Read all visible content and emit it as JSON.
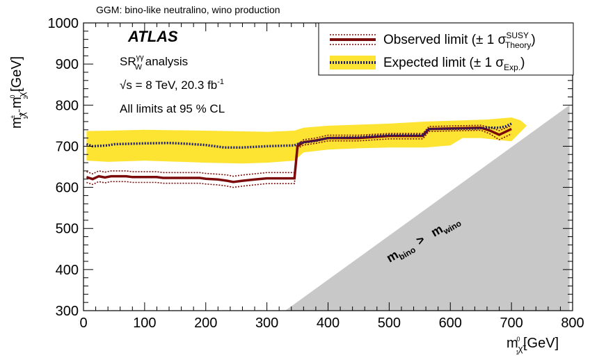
{
  "chart_data": {
    "type": "line",
    "header": "GGM: bino-like neutralino, wino production",
    "xlabel": "m",
    "xlabel_sub": "χ̃",
    "xlabel_sub_idx": "1",
    "xlabel_sup": "0",
    "xlabel_unit": "[GeV]",
    "ylabel_a": "m",
    "ylabel_a_sup": "±",
    "ylabel_a_sub": "χ̃",
    "ylabel_a_sub_idx": "1",
    "ylabel_sep": ", m",
    "ylabel_b_sup": "0",
    "ylabel_b_sub": "χ̃",
    "ylabel_b_sub_idx": "2",
    "ylabel_unit": "[GeV]",
    "xlim": [
      0,
      800
    ],
    "ylim": [
      300,
      1000
    ],
    "xticks": [
      "0",
      "100",
      "200",
      "300",
      "400",
      "500",
      "600",
      "700",
      "800"
    ],
    "yticks": [
      "300",
      "400",
      "500",
      "600",
      "700",
      "800",
      "900",
      "1000"
    ],
    "annotations": {
      "atlas": "ATLAS",
      "sr": "SR",
      "sr_sup": "γγ",
      "sr_sub": "W",
      "sr_rest": " analysis",
      "energy_sqrt": "√",
      "energy": "s = 8 TeV, 20.3 fb",
      "energy_sup": "-1",
      "cl": "All limits at 95 % CL",
      "region_a": "m",
      "region_a_sub": "bino",
      "region_gt": ">",
      "region_b": "m",
      "region_b_sub": "wino"
    },
    "legend": {
      "position": "top-right",
      "observed": "Observed limit (± 1 σ",
      "observed_sup": "SUSY",
      "observed_sub": "Theory",
      "observed_close": ")",
      "expected": "Expected limit (± 1 σ",
      "expected_sub": "Exp.",
      "expected_close": ")"
    },
    "excluded_region": {
      "points": [
        [
          330,
          300
        ],
        [
          795,
          300
        ],
        [
          795,
          800
        ]
      ]
    },
    "series": [
      {
        "key": "observed",
        "points": [
          [
            5,
            625
          ],
          [
            15,
            620
          ],
          [
            25,
            627
          ],
          [
            35,
            624
          ],
          [
            45,
            627
          ],
          [
            70,
            627
          ],
          [
            80,
            625
          ],
          [
            120,
            625
          ],
          [
            130,
            623
          ],
          [
            190,
            623
          ],
          [
            200,
            621
          ],
          [
            220,
            619
          ],
          [
            235,
            616
          ],
          [
            245,
            613
          ],
          [
            260,
            616
          ],
          [
            280,
            619
          ],
          [
            300,
            622
          ],
          [
            345,
            622
          ],
          [
            350,
            700
          ],
          [
            360,
            710
          ],
          [
            380,
            714
          ],
          [
            400,
            720
          ],
          [
            450,
            720
          ],
          [
            500,
            725
          ],
          [
            555,
            725
          ],
          [
            565,
            742
          ],
          [
            650,
            745
          ],
          [
            665,
            738
          ],
          [
            680,
            728
          ],
          [
            700,
            742
          ]
        ]
      },
      {
        "key": "observed_plus",
        "points": [
          [
            5,
            638
          ],
          [
            15,
            633
          ],
          [
            25,
            640
          ],
          [
            35,
            637
          ],
          [
            45,
            640
          ],
          [
            70,
            640
          ],
          [
            80,
            638
          ],
          [
            120,
            638
          ],
          [
            130,
            636
          ],
          [
            190,
            636
          ],
          [
            200,
            634
          ],
          [
            220,
            632
          ],
          [
            235,
            630
          ],
          [
            245,
            627
          ],
          [
            260,
            630
          ],
          [
            280,
            633
          ],
          [
            300,
            636
          ],
          [
            345,
            636
          ],
          [
            350,
            705
          ],
          [
            360,
            716
          ],
          [
            380,
            720
          ],
          [
            400,
            727
          ],
          [
            450,
            727
          ],
          [
            500,
            731
          ],
          [
            555,
            731
          ],
          [
            565,
            748
          ],
          [
            650,
            751
          ],
          [
            665,
            746
          ],
          [
            680,
            738
          ],
          [
            700,
            750
          ]
        ]
      },
      {
        "key": "observed_minus",
        "points": [
          [
            5,
            612
          ],
          [
            15,
            607
          ],
          [
            25,
            614
          ],
          [
            35,
            611
          ],
          [
            45,
            614
          ],
          [
            70,
            614
          ],
          [
            80,
            612
          ],
          [
            120,
            612
          ],
          [
            130,
            610
          ],
          [
            190,
            610
          ],
          [
            200,
            608
          ],
          [
            220,
            606
          ],
          [
            235,
            603
          ],
          [
            245,
            600
          ],
          [
            260,
            603
          ],
          [
            280,
            606
          ],
          [
            300,
            609
          ],
          [
            345,
            609
          ],
          [
            350,
            695
          ],
          [
            360,
            703
          ],
          [
            380,
            707
          ],
          [
            400,
            713
          ],
          [
            450,
            713
          ],
          [
            500,
            718
          ],
          [
            555,
            718
          ],
          [
            565,
            736
          ],
          [
            650,
            739
          ],
          [
            665,
            730
          ],
          [
            680,
            716
          ],
          [
            700,
            730
          ]
        ]
      },
      {
        "key": "expected",
        "points": [
          [
            5,
            705
          ],
          [
            15,
            700
          ],
          [
            40,
            702
          ],
          [
            50,
            705
          ],
          [
            100,
            707
          ],
          [
            140,
            708
          ],
          [
            170,
            706
          ],
          [
            200,
            703
          ],
          [
            230,
            697
          ],
          [
            260,
            697
          ],
          [
            300,
            700
          ],
          [
            345,
            702
          ],
          [
            355,
            708
          ],
          [
            380,
            713
          ],
          [
            400,
            720
          ],
          [
            450,
            722
          ],
          [
            500,
            727
          ],
          [
            555,
            727
          ],
          [
            565,
            742
          ],
          [
            640,
            743
          ],
          [
            660,
            745
          ],
          [
            680,
            745
          ],
          [
            690,
            748
          ],
          [
            700,
            755
          ]
        ]
      }
    ],
    "expected_band": {
      "upper": [
        [
          5,
          737
        ],
        [
          40,
          738
        ],
        [
          100,
          740
        ],
        [
          200,
          738
        ],
        [
          300,
          735
        ],
        [
          345,
          738
        ],
        [
          360,
          745
        ],
        [
          400,
          750
        ],
        [
          500,
          755
        ],
        [
          560,
          760
        ],
        [
          600,
          762
        ],
        [
          660,
          765
        ],
        [
          700,
          770
        ],
        [
          715,
          763
        ],
        [
          725,
          750
        ]
      ],
      "lower": [
        [
          5,
          665
        ],
        [
          40,
          662
        ],
        [
          100,
          665
        ],
        [
          200,
          660
        ],
        [
          260,
          658
        ],
        [
          300,
          660
        ],
        [
          345,
          665
        ],
        [
          360,
          685
        ],
        [
          400,
          692
        ],
        [
          450,
          695
        ],
        [
          500,
          697
        ],
        [
          560,
          697
        ],
        [
          600,
          702
        ],
        [
          620,
          720
        ],
        [
          650,
          720
        ],
        [
          680,
          715
        ],
        [
          700,
          712
        ],
        [
          725,
          750
        ]
      ]
    },
    "colors": {
      "band": "#fde332",
      "observed": "#7b0b0b",
      "expected": "#1c1c7a",
      "excluded": "#c8c8c8",
      "axis": "#000000"
    }
  }
}
